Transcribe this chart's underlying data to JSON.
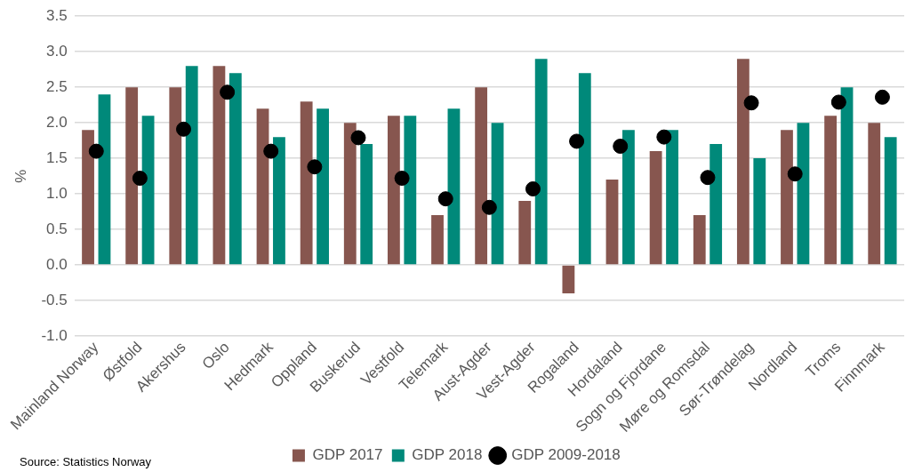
{
  "chart_data": {
    "type": "bar",
    "ylabel": "%",
    "categories": [
      "Mainland Norway",
      "Østfold",
      "Akershus",
      "Oslo",
      "Hedmark",
      "Oppland",
      "Buskerud",
      "Vestfold",
      "Telemark",
      "Aust-Agder",
      "Vest-Agder",
      "Rogaland",
      "Hordaland",
      "Sogn og Fjordane",
      "Møre og Romsdal",
      "Sør-Trøndelag",
      "Nordland",
      "Troms",
      "Finnmark"
    ],
    "series": [
      {
        "name": "GDP 2017",
        "color": "#87564f",
        "values": [
          1.9,
          2.5,
          2.5,
          2.8,
          2.2,
          2.3,
          2.0,
          2.1,
          0.7,
          2.5,
          0.9,
          -0.4,
          1.2,
          1.6,
          0.7,
          2.9,
          1.9,
          2.1,
          2.0
        ]
      },
      {
        "name": "GDP 2018",
        "color": "#00897a",
        "values": [
          2.4,
          2.1,
          2.8,
          2.7,
          1.8,
          2.2,
          1.7,
          2.1,
          2.2,
          2.0,
          2.9,
          2.7,
          1.9,
          1.9,
          1.7,
          1.5,
          2.0,
          2.5,
          1.8
        ]
      },
      {
        "name": "GDP 2009-2018",
        "type": "scatter",
        "color": "#000000",
        "x": [
          "Mainland Norway",
          "Østfold",
          "Akershus",
          "Oslo",
          "Hedmark",
          "Oppland",
          "Buskerud",
          "Vestfold",
          "Telemark",
          "Aust-Agder",
          "Vest-Agder",
          "Rogaland",
          "Hordaland",
          "Sogn og Fjordane",
          "Møre og Romsdal",
          "Sør-Trøndelag",
          "Nordland",
          "Troms",
          "Finnmark"
        ],
        "values": [
          1.6,
          1.22,
          1.91,
          2.43,
          1.6,
          1.38,
          1.79,
          1.22,
          0.93,
          0.81,
          1.07,
          1.74,
          1.67,
          1.8,
          1.23,
          2.28,
          1.28,
          2.29,
          2.36
        ]
      }
    ],
    "ylim": [
      -1,
      3.5
    ],
    "yticks": [
      {
        "value": -1,
        "label": "-1.0"
      },
      {
        "value": -0.5,
        "label": "-0.5"
      },
      {
        "value": 0,
        "label": "0.0"
      },
      {
        "value": 0.5,
        "label": "0.5"
      },
      {
        "value": 1,
        "label": "1.0"
      },
      {
        "value": 1.5,
        "label": "1.5"
      },
      {
        "value": 2,
        "label": "2.0"
      },
      {
        "value": 2.5,
        "label": "2.5"
      },
      {
        "value": 3,
        "label": "3.0"
      },
      {
        "value": 3.5,
        "label": "3.5"
      }
    ],
    "grid": "y",
    "legend": "bottom",
    "marker": "circle",
    "annotations": [
      "Source: Statistics Norway"
    ]
  }
}
